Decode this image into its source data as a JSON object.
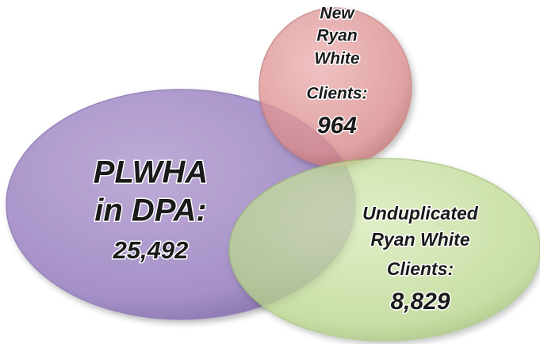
{
  "circles": [
    {
      "label_lines": [
        "PLWHA",
        "in DPA:"
      ],
      "value": "25,492"
    },
    {
      "label_lines": [
        "New",
        "Ryan",
        "White",
        "Clients:"
      ],
      "value": "964"
    },
    {
      "label_lines": [
        "Unduplicated",
        "Ryan White",
        "Clients:"
      ],
      "value": "8,829"
    }
  ]
}
